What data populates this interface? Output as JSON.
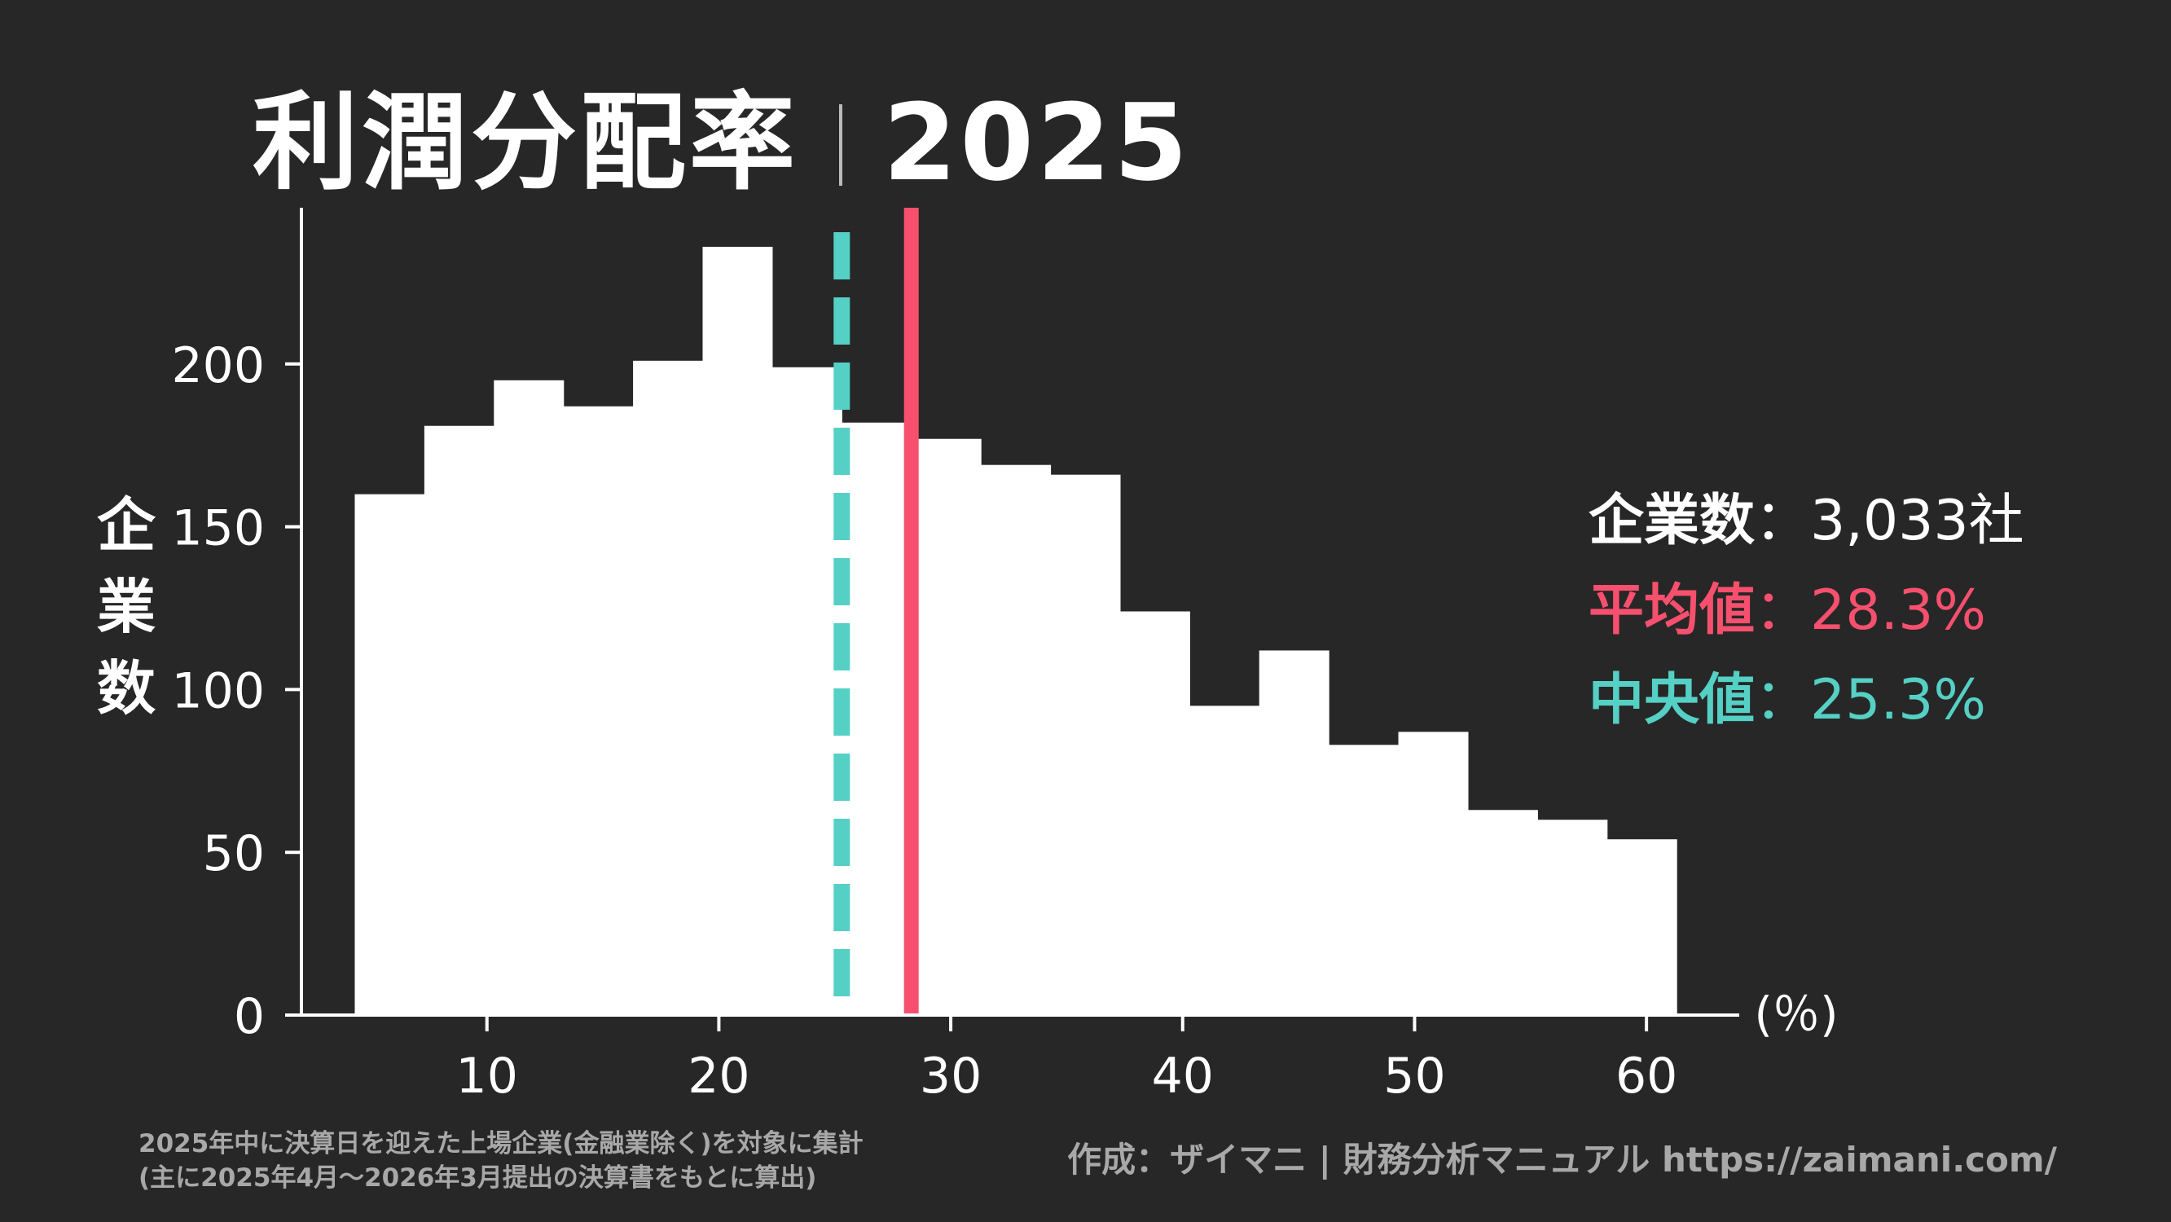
{
  "title": {
    "main": "利潤分配率",
    "year": "2025"
  },
  "axis": {
    "ylabel_chars": [
      "企",
      "業",
      "数"
    ],
    "xunit": "(％)"
  },
  "stats": {
    "count_label": "企業数",
    "count_value": "：3,033社",
    "mean_label": "平均値",
    "mean_value": "：28.3%",
    "median_label": "中央値",
    "median_value": "：25.3%"
  },
  "footer": {
    "note_line1": "2025年中に決算日を迎えた上場企業(金融業除く)を対象に集計",
    "note_line2": "(主に2025年4月～2026年3月提出の決算書をもとに算出)",
    "credit": "作成：ザイマニ | 財務分析マニュアル https://zaimani.com/"
  },
  "colors": {
    "background": "#272727",
    "bars": "#ffffff",
    "mean_line": "#f7506e",
    "median_line": "#55d0c5",
    "axis": "#ffffff"
  },
  "chart_data": {
    "type": "bar",
    "subtype": "histogram",
    "xlim": [
      2,
      64
    ],
    "ylim": [
      0,
      248
    ],
    "xticks": [
      10,
      20,
      30,
      40,
      50,
      60
    ],
    "yticks": [
      0,
      50,
      100,
      150,
      200
    ],
    "bins": [
      {
        "x0": 4.3,
        "x1": 7.3,
        "value": 160
      },
      {
        "x0": 7.3,
        "x1": 10.3,
        "value": 181
      },
      {
        "x0": 10.3,
        "x1": 13.3,
        "value": 195
      },
      {
        "x0": 13.3,
        "x1": 16.3,
        "value": 187
      },
      {
        "x0": 16.3,
        "x1": 19.3,
        "value": 201
      },
      {
        "x0": 19.3,
        "x1": 22.3,
        "value": 236
      },
      {
        "x0": 22.3,
        "x1": 25.3,
        "value": 199
      },
      {
        "x0": 25.3,
        "x1": 28.3,
        "value": 182
      },
      {
        "x0": 28.3,
        "x1": 31.3,
        "value": 177
      },
      {
        "x0": 31.3,
        "x1": 34.3,
        "value": 169
      },
      {
        "x0": 34.3,
        "x1": 37.3,
        "value": 166
      },
      {
        "x0": 37.3,
        "x1": 40.3,
        "value": 124
      },
      {
        "x0": 40.3,
        "x1": 43.3,
        "value": 95
      },
      {
        "x0": 43.3,
        "x1": 46.3,
        "value": 112
      },
      {
        "x0": 46.3,
        "x1": 49.3,
        "value": 83
      },
      {
        "x0": 49.3,
        "x1": 52.3,
        "value": 87
      },
      {
        "x0": 52.3,
        "x1": 55.3,
        "value": 63
      },
      {
        "x0": 55.3,
        "x1": 58.3,
        "value": 60
      },
      {
        "x0": 58.3,
        "x1": 61.3,
        "value": 54
      }
    ],
    "mean": 28.3,
    "median": 25.3
  }
}
